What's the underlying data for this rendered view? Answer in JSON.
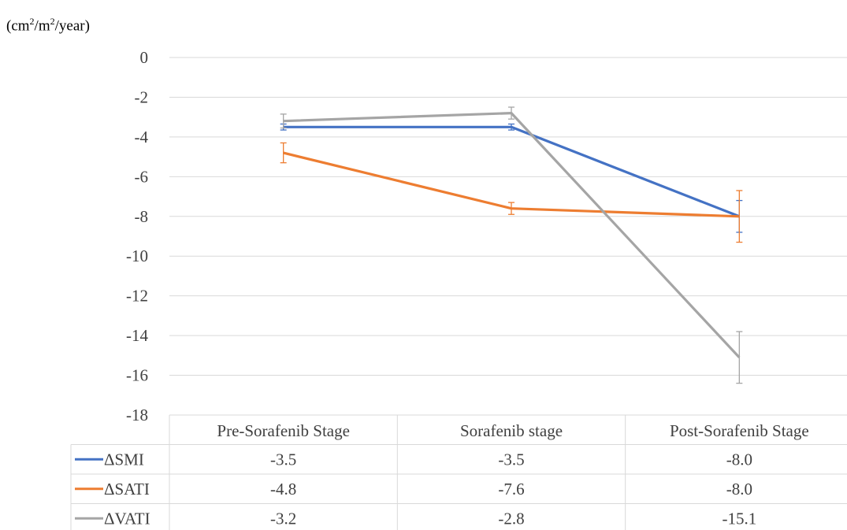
{
  "unit_label": {
    "pre": "(cm",
    "sup1": "2",
    "mid": "/m",
    "sup2": "2",
    "post": "/year)"
  },
  "chart_data": {
    "type": "line",
    "title": "",
    "ylabel": "(cm2/m2/year)",
    "xlabel": "",
    "ylim": [
      -18,
      0
    ],
    "yticks": [
      "0",
      "-2",
      "-4",
      "-6",
      "-8",
      "-10",
      "-12",
      "-14",
      "-16",
      "-18"
    ],
    "ytick_values": [
      0,
      -2,
      -4,
      -6,
      -8,
      -10,
      -12,
      -14,
      -16,
      -18
    ],
    "grid": true,
    "legend": "data-table",
    "categories": [
      "Pre-Sorafenib Stage",
      "Sorafenib stage",
      "Post-Sorafenib Stage"
    ],
    "series": [
      {
        "name": "ΔSMI",
        "color": "#4472C4",
        "values": [
          -3.5,
          -3.5,
          -8.0
        ],
        "labels": [
          "-3.5",
          "-3.5",
          "-8.0"
        ],
        "error": [
          0.15,
          0.15,
          0.8
        ]
      },
      {
        "name": "ΔSATI",
        "color": "#ED7D31",
        "values": [
          -4.8,
          -7.6,
          -8.0
        ],
        "labels": [
          "-4.8",
          "-7.6",
          "-8.0"
        ],
        "error": [
          0.5,
          0.3,
          1.3
        ]
      },
      {
        "name": "ΔVATI",
        "color": "#A5A5A5",
        "values": [
          -3.2,
          -2.8,
          -15.1
        ],
        "labels": [
          "-3.2",
          "-2.8",
          "-15.1"
        ],
        "error": [
          0.35,
          0.3,
          1.3
        ]
      }
    ]
  }
}
